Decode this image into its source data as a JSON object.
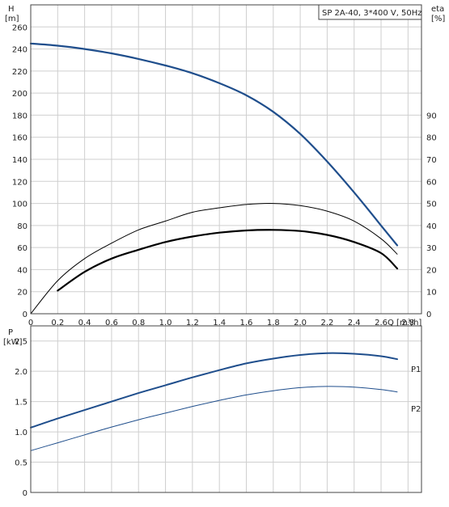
{
  "chart_data": [
    {
      "type": "line",
      "title": "SP 2A-40, 3*400 V, 50Hz",
      "xlabel": "Q [m³/h]",
      "ylabel_left": "H",
      "ylabel_left_unit": "[m]",
      "ylabel_right": "eta",
      "ylabel_right_unit": "[%]",
      "xlim": [
        0,
        2.9
      ],
      "ylim": [
        0,
        280
      ],
      "ylim_right": [
        0,
        140
      ],
      "x_ticks": [
        "0",
        "0.2",
        "0.4",
        "0.6",
        "0.8",
        "1.0",
        "1.2",
        "1.4",
        "1.6",
        "1.8",
        "2.0",
        "2.2",
        "2.4",
        "2.6",
        "2.8"
      ],
      "y_ticks": [
        "0",
        "20",
        "40",
        "60",
        "80",
        "100",
        "120",
        "140",
        "160",
        "180",
        "200",
        "220",
        "240",
        "260"
      ],
      "y_ticks_right": [
        "0",
        "10",
        "20",
        "30",
        "40",
        "50",
        "60",
        "70",
        "80",
        "90"
      ],
      "grid": true,
      "series": [
        {
          "axis": "left",
          "color": "#1f4e8c",
          "x": [
            0,
            0.2,
            0.4,
            0.6,
            0.8,
            1.0,
            1.2,
            1.4,
            1.6,
            1.8,
            2.0,
            2.2,
            2.4,
            2.6,
            2.72
          ],
          "y": [
            245,
            243,
            240,
            236,
            231,
            225,
            218,
            209,
            198,
            183,
            163,
            138,
            110,
            80,
            62
          ]
        },
        {
          "axis": "right",
          "color": "#000000",
          "x": [
            0,
            0.2,
            0.4,
            0.6,
            0.8,
            1.0,
            1.2,
            1.4,
            1.6,
            1.8,
            2.0,
            2.2,
            2.4,
            2.6,
            2.72
          ],
          "y": [
            0,
            15,
            25,
            32,
            38,
            42,
            46,
            48,
            49.5,
            50,
            49,
            46.5,
            42,
            34,
            27
          ]
        },
        {
          "axis": "left",
          "color": "#000000",
          "x": [
            0.2,
            0.4,
            0.6,
            0.8,
            1.0,
            1.2,
            1.4,
            1.6,
            1.8,
            2.0,
            2.2,
            2.4,
            2.6,
            2.72
          ],
          "y": [
            21,
            38,
            50,
            58,
            65,
            70,
            73.5,
            75.5,
            76,
            75,
            71.5,
            65,
            55,
            41
          ]
        }
      ]
    },
    {
      "type": "line",
      "title": "",
      "ylabel": "P",
      "ylabel_unit": "[kW]",
      "xlim": [
        0,
        2.9
      ],
      "ylim": [
        0,
        2.75
      ],
      "y_ticks": [
        "0",
        "0.5",
        "1.0",
        "1.5",
        "2.0",
        "2.5"
      ],
      "grid": true,
      "series": [
        {
          "name": "P1",
          "color": "#1f4e8c",
          "x": [
            0,
            0.2,
            0.4,
            0.6,
            0.8,
            1.0,
            1.2,
            1.4,
            1.6,
            1.8,
            2.0,
            2.2,
            2.4,
            2.6,
            2.72
          ],
          "y": [
            1.07,
            1.22,
            1.36,
            1.5,
            1.64,
            1.77,
            1.9,
            2.02,
            2.13,
            2.21,
            2.27,
            2.3,
            2.29,
            2.25,
            2.2
          ]
        },
        {
          "name": "P2",
          "color": "#1f4e8c",
          "x": [
            0,
            0.2,
            0.4,
            0.6,
            0.8,
            1.0,
            1.2,
            1.4,
            1.6,
            1.8,
            2.0,
            2.2,
            2.4,
            2.6,
            2.72
          ],
          "y": [
            0.69,
            0.82,
            0.95,
            1.08,
            1.2,
            1.31,
            1.42,
            1.52,
            1.61,
            1.68,
            1.73,
            1.75,
            1.74,
            1.7,
            1.66
          ]
        }
      ]
    }
  ]
}
